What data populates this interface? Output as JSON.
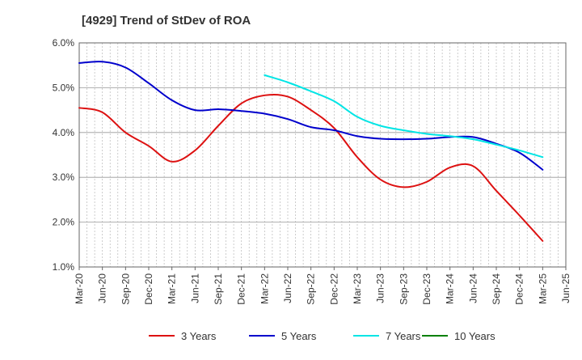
{
  "chart_data": {
    "type": "line",
    "title": "[4929]  Trend of StDev of ROA",
    "xlabel": "",
    "ylabel": "",
    "ylim": [
      1.0,
      6.0
    ],
    "yticks": [
      1.0,
      2.0,
      3.0,
      4.0,
      5.0,
      6.0
    ],
    "ytick_labels": [
      "1.0%",
      "2.0%",
      "3.0%",
      "4.0%",
      "5.0%",
      "6.0%"
    ],
    "categories": [
      "Mar-20",
      "Jun-20",
      "Sep-20",
      "Dec-20",
      "Mar-21",
      "Jun-21",
      "Sep-21",
      "Dec-21",
      "Mar-22",
      "Jun-22",
      "Sep-22",
      "Dec-22",
      "Mar-23",
      "Jun-23",
      "Sep-23",
      "Dec-23",
      "Mar-24",
      "Jun-24",
      "Sep-24",
      "Dec-24",
      "Mar-25",
      "Jun-25"
    ],
    "grid": true,
    "legend_position": "bottom",
    "series": [
      {
        "name": "3 Years",
        "color": "#dd1111",
        "values": [
          4.55,
          4.45,
          4.0,
          3.7,
          3.35,
          3.6,
          4.15,
          4.65,
          4.83,
          4.8,
          4.5,
          4.1,
          3.45,
          2.95,
          2.78,
          2.9,
          3.22,
          3.25,
          2.7,
          2.15,
          1.58,
          null
        ]
      },
      {
        "name": "5 Years",
        "color": "#0000cc",
        "values": [
          5.55,
          5.58,
          5.45,
          5.1,
          4.72,
          4.5,
          4.52,
          4.48,
          4.42,
          4.3,
          4.12,
          4.05,
          3.92,
          3.86,
          3.85,
          3.86,
          3.9,
          3.9,
          3.75,
          3.55,
          3.17,
          null
        ]
      },
      {
        "name": "7 Years",
        "color": "#00e5e5",
        "values": [
          null,
          null,
          null,
          null,
          null,
          null,
          null,
          null,
          5.28,
          5.12,
          4.92,
          4.7,
          4.35,
          4.15,
          4.05,
          3.97,
          3.92,
          3.85,
          3.73,
          3.6,
          3.45,
          null
        ]
      },
      {
        "name": "10 Years",
        "color": "#008000",
        "values": [
          null,
          null,
          null,
          null,
          null,
          null,
          null,
          null,
          null,
          null,
          null,
          null,
          null,
          null,
          null,
          null,
          null,
          null,
          null,
          null,
          null,
          null
        ]
      }
    ]
  }
}
